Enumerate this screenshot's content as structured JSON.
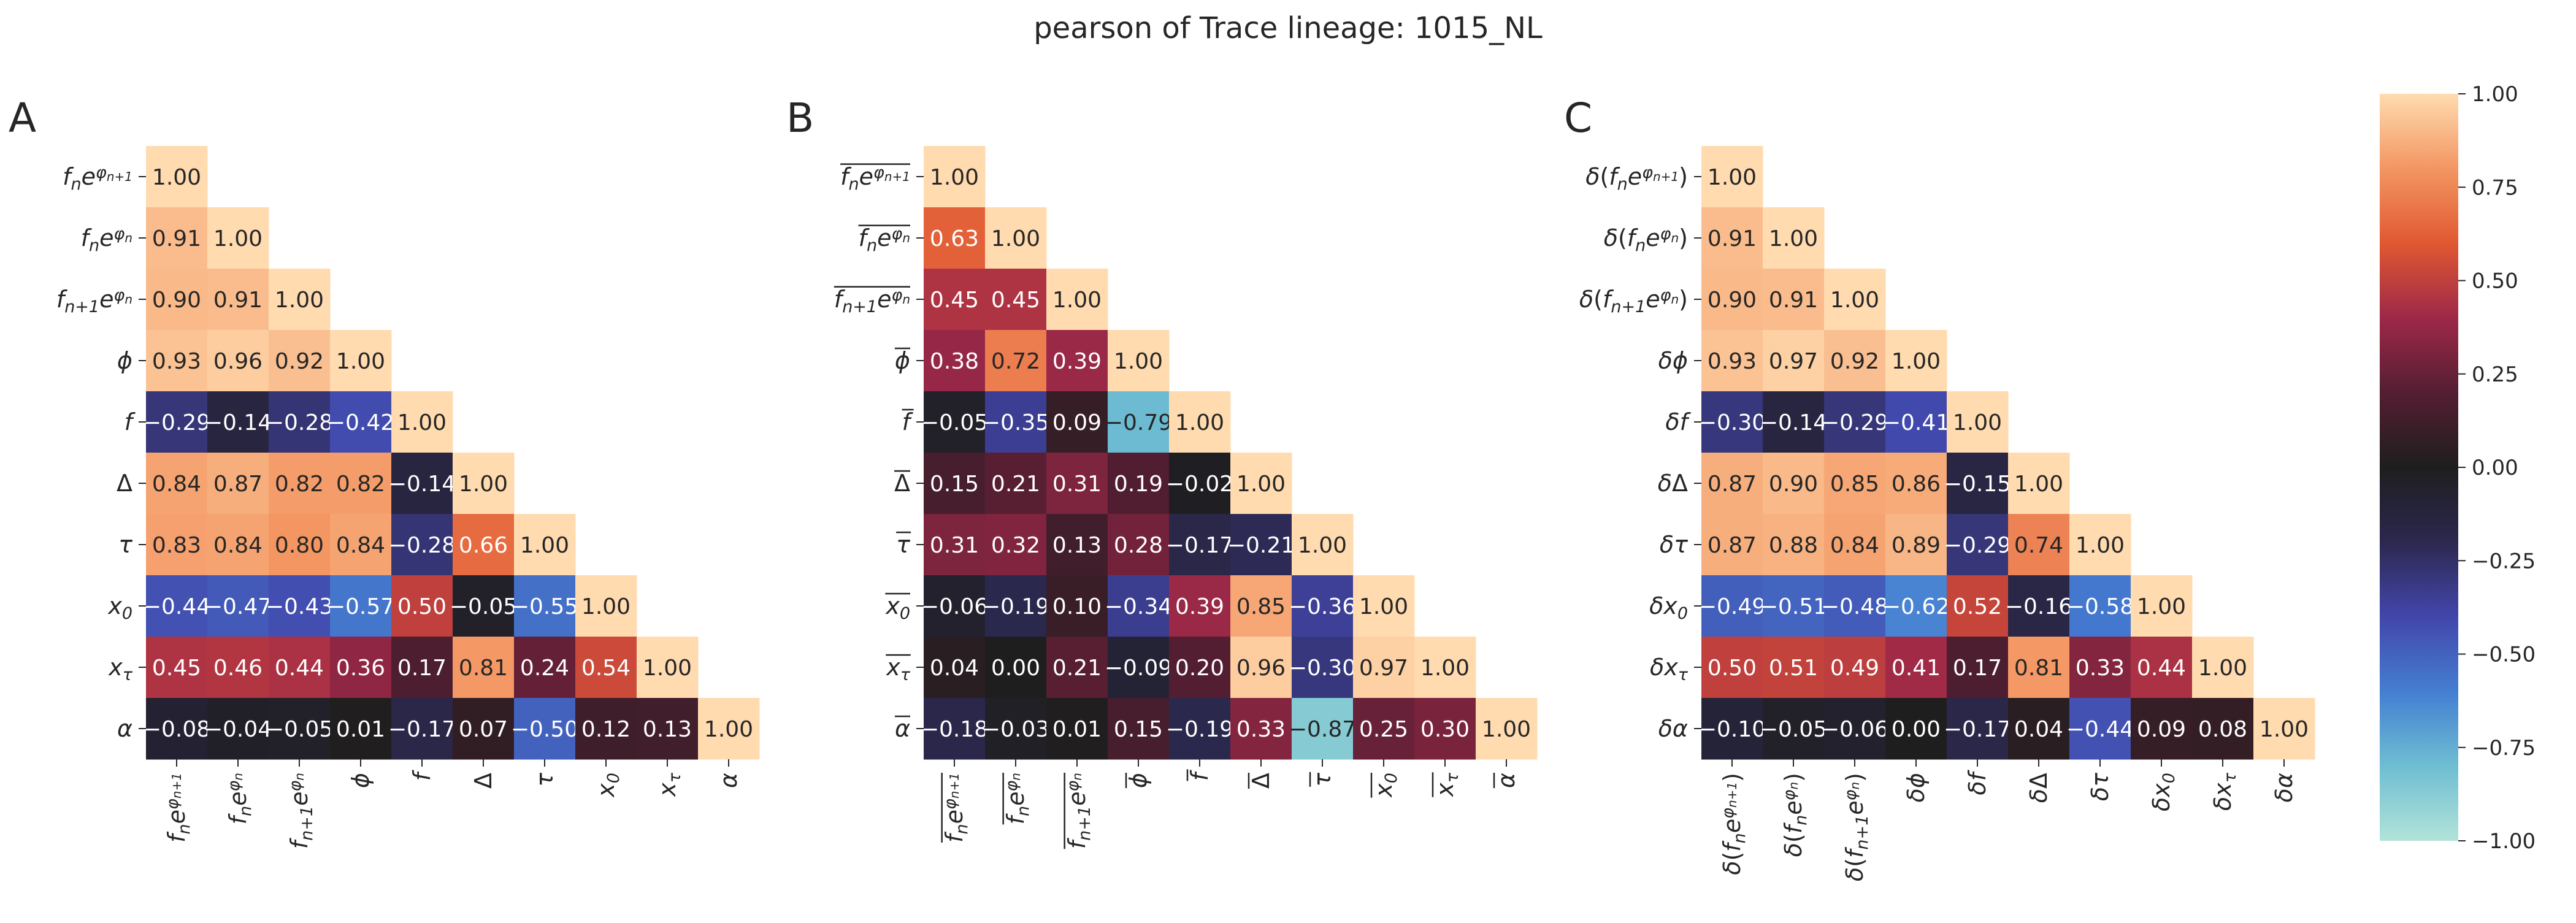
{
  "title": "pearson of Trace lineage: 1015_NL",
  "panels": [
    "A",
    "B",
    "C"
  ],
  "colorbar": {
    "ticks": [
      "1.00",
      "0.75",
      "0.50",
      "0.25",
      "0.00",
      "−0.25",
      "−0.50",
      "−0.75",
      "−1.00"
    ]
  },
  "label_sets": {
    "A": [
      [
        [
          "i",
          "f"
        ],
        [
          "si",
          "n"
        ],
        [
          "i",
          "e"
        ],
        [
          "sup",
          "φ"
        ],
        [
          "ssi",
          "n+1"
        ]
      ],
      [
        [
          "i",
          "f"
        ],
        [
          "si",
          "n"
        ],
        [
          "i",
          "e"
        ],
        [
          "sup",
          "φ"
        ],
        [
          "ssi",
          "n"
        ]
      ],
      [
        [
          "i",
          "f"
        ],
        [
          "si",
          "n+1"
        ],
        [
          "i",
          "e"
        ],
        [
          "sup",
          "φ"
        ],
        [
          "ssi",
          "n"
        ]
      ],
      [
        [
          "i",
          "ϕ"
        ]
      ],
      [
        [
          "i",
          "f"
        ]
      ],
      [
        [
          "t",
          "Δ"
        ]
      ],
      [
        [
          "i",
          "τ"
        ]
      ],
      [
        [
          "i",
          "x"
        ],
        [
          "si",
          "0"
        ]
      ],
      [
        [
          "i",
          "x"
        ],
        [
          "si",
          "τ"
        ]
      ],
      [
        [
          "i",
          "α"
        ]
      ]
    ],
    "B": [
      [
        [
          "i",
          "f"
        ],
        [
          "si",
          "n"
        ],
        [
          "i",
          "e"
        ],
        [
          "sup",
          "φ"
        ],
        [
          "ssi",
          "n+1"
        ]
      ],
      [
        [
          "i",
          "f"
        ],
        [
          "si",
          "n"
        ],
        [
          "i",
          "e"
        ],
        [
          "sup",
          "φ"
        ],
        [
          "ssi",
          "n"
        ]
      ],
      [
        [
          "i",
          "f"
        ],
        [
          "si",
          "n+1"
        ],
        [
          "i",
          "e"
        ],
        [
          "sup",
          "φ"
        ],
        [
          "ssi",
          "n"
        ]
      ],
      [
        [
          "i",
          "ϕ"
        ]
      ],
      [
        [
          "i",
          "f"
        ]
      ],
      [
        [
          "t",
          "Δ"
        ]
      ],
      [
        [
          "i",
          "τ"
        ]
      ],
      [
        [
          "i",
          "x"
        ],
        [
          "si",
          "0"
        ]
      ],
      [
        [
          "i",
          "x"
        ],
        [
          "si",
          "τ"
        ]
      ],
      [
        [
          "i",
          "α"
        ]
      ]
    ],
    "C": [
      [
        [
          "i",
          "δ"
        ],
        [
          "t",
          "("
        ],
        [
          "i",
          "f"
        ],
        [
          "si",
          "n"
        ],
        [
          "i",
          "e"
        ],
        [
          "sup",
          "φ"
        ],
        [
          "ssi",
          "n+1"
        ],
        [
          "t",
          ")"
        ]
      ],
      [
        [
          "i",
          "δ"
        ],
        [
          "t",
          "("
        ],
        [
          "i",
          "f"
        ],
        [
          "si",
          "n"
        ],
        [
          "i",
          "e"
        ],
        [
          "sup",
          "φ"
        ],
        [
          "ssi",
          "n"
        ],
        [
          "t",
          ")"
        ]
      ],
      [
        [
          "i",
          "δ"
        ],
        [
          "t",
          "("
        ],
        [
          "i",
          "f"
        ],
        [
          "si",
          "n+1"
        ],
        [
          "i",
          "e"
        ],
        [
          "sup",
          "φ"
        ],
        [
          "ssi",
          "n"
        ],
        [
          "t",
          ")"
        ]
      ],
      [
        [
          "i",
          "δϕ"
        ]
      ],
      [
        [
          "i",
          "δf"
        ]
      ],
      [
        [
          "i",
          "δ"
        ],
        [
          "t",
          "Δ"
        ]
      ],
      [
        [
          "i",
          "δτ"
        ]
      ],
      [
        [
          "i",
          "δx"
        ],
        [
          "si",
          "0"
        ]
      ],
      [
        [
          "i",
          "δx"
        ],
        [
          "si",
          "τ"
        ]
      ],
      [
        [
          "i",
          "δα"
        ]
      ]
    ]
  },
  "chart_data": [
    {
      "type": "heatmap",
      "panel": "A",
      "matrix": "lower-triangle",
      "colormap": "icefire",
      "vmin": -1,
      "vmax": 1,
      "overline_labels": false,
      "values": [
        [
          1.0
        ],
        [
          0.91,
          1.0
        ],
        [
          0.9,
          0.91,
          1.0
        ],
        [
          0.93,
          0.96,
          0.92,
          1.0
        ],
        [
          -0.29,
          -0.14,
          -0.28,
          -0.42,
          1.0
        ],
        [
          0.84,
          0.87,
          0.82,
          0.82,
          -0.14,
          1.0
        ],
        [
          0.83,
          0.84,
          0.8,
          0.84,
          -0.28,
          0.66,
          1.0
        ],
        [
          -0.44,
          -0.47,
          -0.43,
          -0.57,
          0.5,
          -0.05,
          -0.55,
          1.0
        ],
        [
          0.45,
          0.46,
          0.44,
          0.36,
          0.17,
          0.81,
          0.24,
          0.54,
          1.0
        ],
        [
          -0.08,
          -0.04,
          -0.05,
          0.01,
          -0.17,
          0.07,
          -0.5,
          0.12,
          0.13,
          1.0
        ]
      ]
    },
    {
      "type": "heatmap",
      "panel": "B",
      "matrix": "lower-triangle",
      "colormap": "icefire",
      "vmin": -1,
      "vmax": 1,
      "overline_labels": true,
      "values": [
        [
          1.0
        ],
        [
          0.63,
          1.0
        ],
        [
          0.45,
          0.45,
          1.0
        ],
        [
          0.38,
          0.72,
          0.39,
          1.0
        ],
        [
          -0.05,
          -0.35,
          0.09,
          -0.79,
          1.0
        ],
        [
          0.15,
          0.21,
          0.31,
          0.19,
          -0.02,
          1.0
        ],
        [
          0.31,
          0.32,
          0.13,
          0.28,
          -0.17,
          -0.21,
          1.0
        ],
        [
          -0.06,
          -0.19,
          0.1,
          -0.34,
          0.39,
          0.85,
          -0.36,
          1.0
        ],
        [
          0.04,
          0.0,
          0.21,
          -0.09,
          0.2,
          0.96,
          -0.3,
          0.97,
          1.0
        ],
        [
          -0.18,
          -0.03,
          0.01,
          0.15,
          -0.19,
          0.33,
          -0.87,
          0.25,
          0.3,
          1.0
        ]
      ]
    },
    {
      "type": "heatmap",
      "panel": "C",
      "matrix": "lower-triangle",
      "colormap": "icefire",
      "vmin": -1,
      "vmax": 1,
      "overline_labels": false,
      "values": [
        [
          1.0
        ],
        [
          0.91,
          1.0
        ],
        [
          0.9,
          0.91,
          1.0
        ],
        [
          0.93,
          0.97,
          0.92,
          1.0
        ],
        [
          -0.3,
          -0.14,
          -0.29,
          -0.41,
          1.0
        ],
        [
          0.87,
          0.9,
          0.85,
          0.86,
          -0.15,
          1.0
        ],
        [
          0.87,
          0.88,
          0.84,
          0.89,
          -0.29,
          0.74,
          1.0
        ],
        [
          -0.49,
          -0.51,
          -0.48,
          -0.62,
          0.52,
          -0.16,
          -0.58,
          1.0
        ],
        [
          0.5,
          0.51,
          0.49,
          0.41,
          0.17,
          0.81,
          0.33,
          0.44,
          1.0
        ],
        [
          -0.1,
          -0.05,
          -0.06,
          0.0,
          -0.17,
          0.04,
          -0.44,
          0.09,
          0.08,
          1.0
        ]
      ]
    }
  ]
}
